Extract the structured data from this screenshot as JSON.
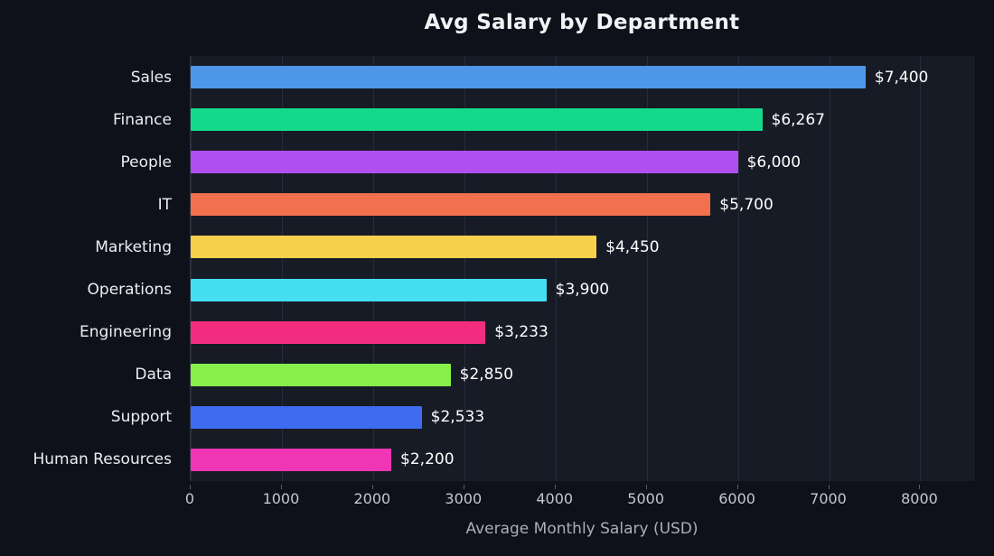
{
  "chart_data": {
    "type": "bar",
    "orientation": "horizontal",
    "title": "Avg Salary by Department",
    "xlabel": "Average Monthly Salary (USD)",
    "categories": [
      "Sales",
      "Finance",
      "People",
      "IT",
      "Marketing",
      "Operations",
      "Engineering",
      "Data",
      "Support",
      "Human Resources"
    ],
    "values": [
      7400,
      6267,
      6000,
      5700,
      4450,
      3900,
      3233,
      2850,
      2533,
      2200
    ],
    "value_labels": [
      "$7,400",
      "$6,267",
      "$6,000",
      "$5,700",
      "$4,450",
      "$3,900",
      "$3,233",
      "$2,850",
      "$2,533",
      "$2,200"
    ],
    "bar_colors": [
      "#4e96e8",
      "#15d98a",
      "#b04ff0",
      "#f2704d",
      "#f7d04b",
      "#45dff2",
      "#f22d80",
      "#86ef4a",
      "#3e6cf0",
      "#f035b5"
    ],
    "xlim": [
      0,
      8600
    ],
    "xticks": [
      0,
      1000,
      2000,
      3000,
      4000,
      5000,
      6000,
      7000,
      8000
    ],
    "xtick_labels": [
      "0",
      "1000",
      "2000",
      "3000",
      "4000",
      "5000",
      "6000",
      "7000",
      "8000"
    ],
    "grid": true,
    "legend": false,
    "colors": {
      "background": "#0e111a",
      "plot_background": "#171b26",
      "grid": "#272c3a",
      "title": "#f2f3f5",
      "category_label": "#eceef2",
      "tick_label": "#c3c7cf",
      "axis_label": "#a9aeb9",
      "value_label": "#ffffff"
    }
  }
}
